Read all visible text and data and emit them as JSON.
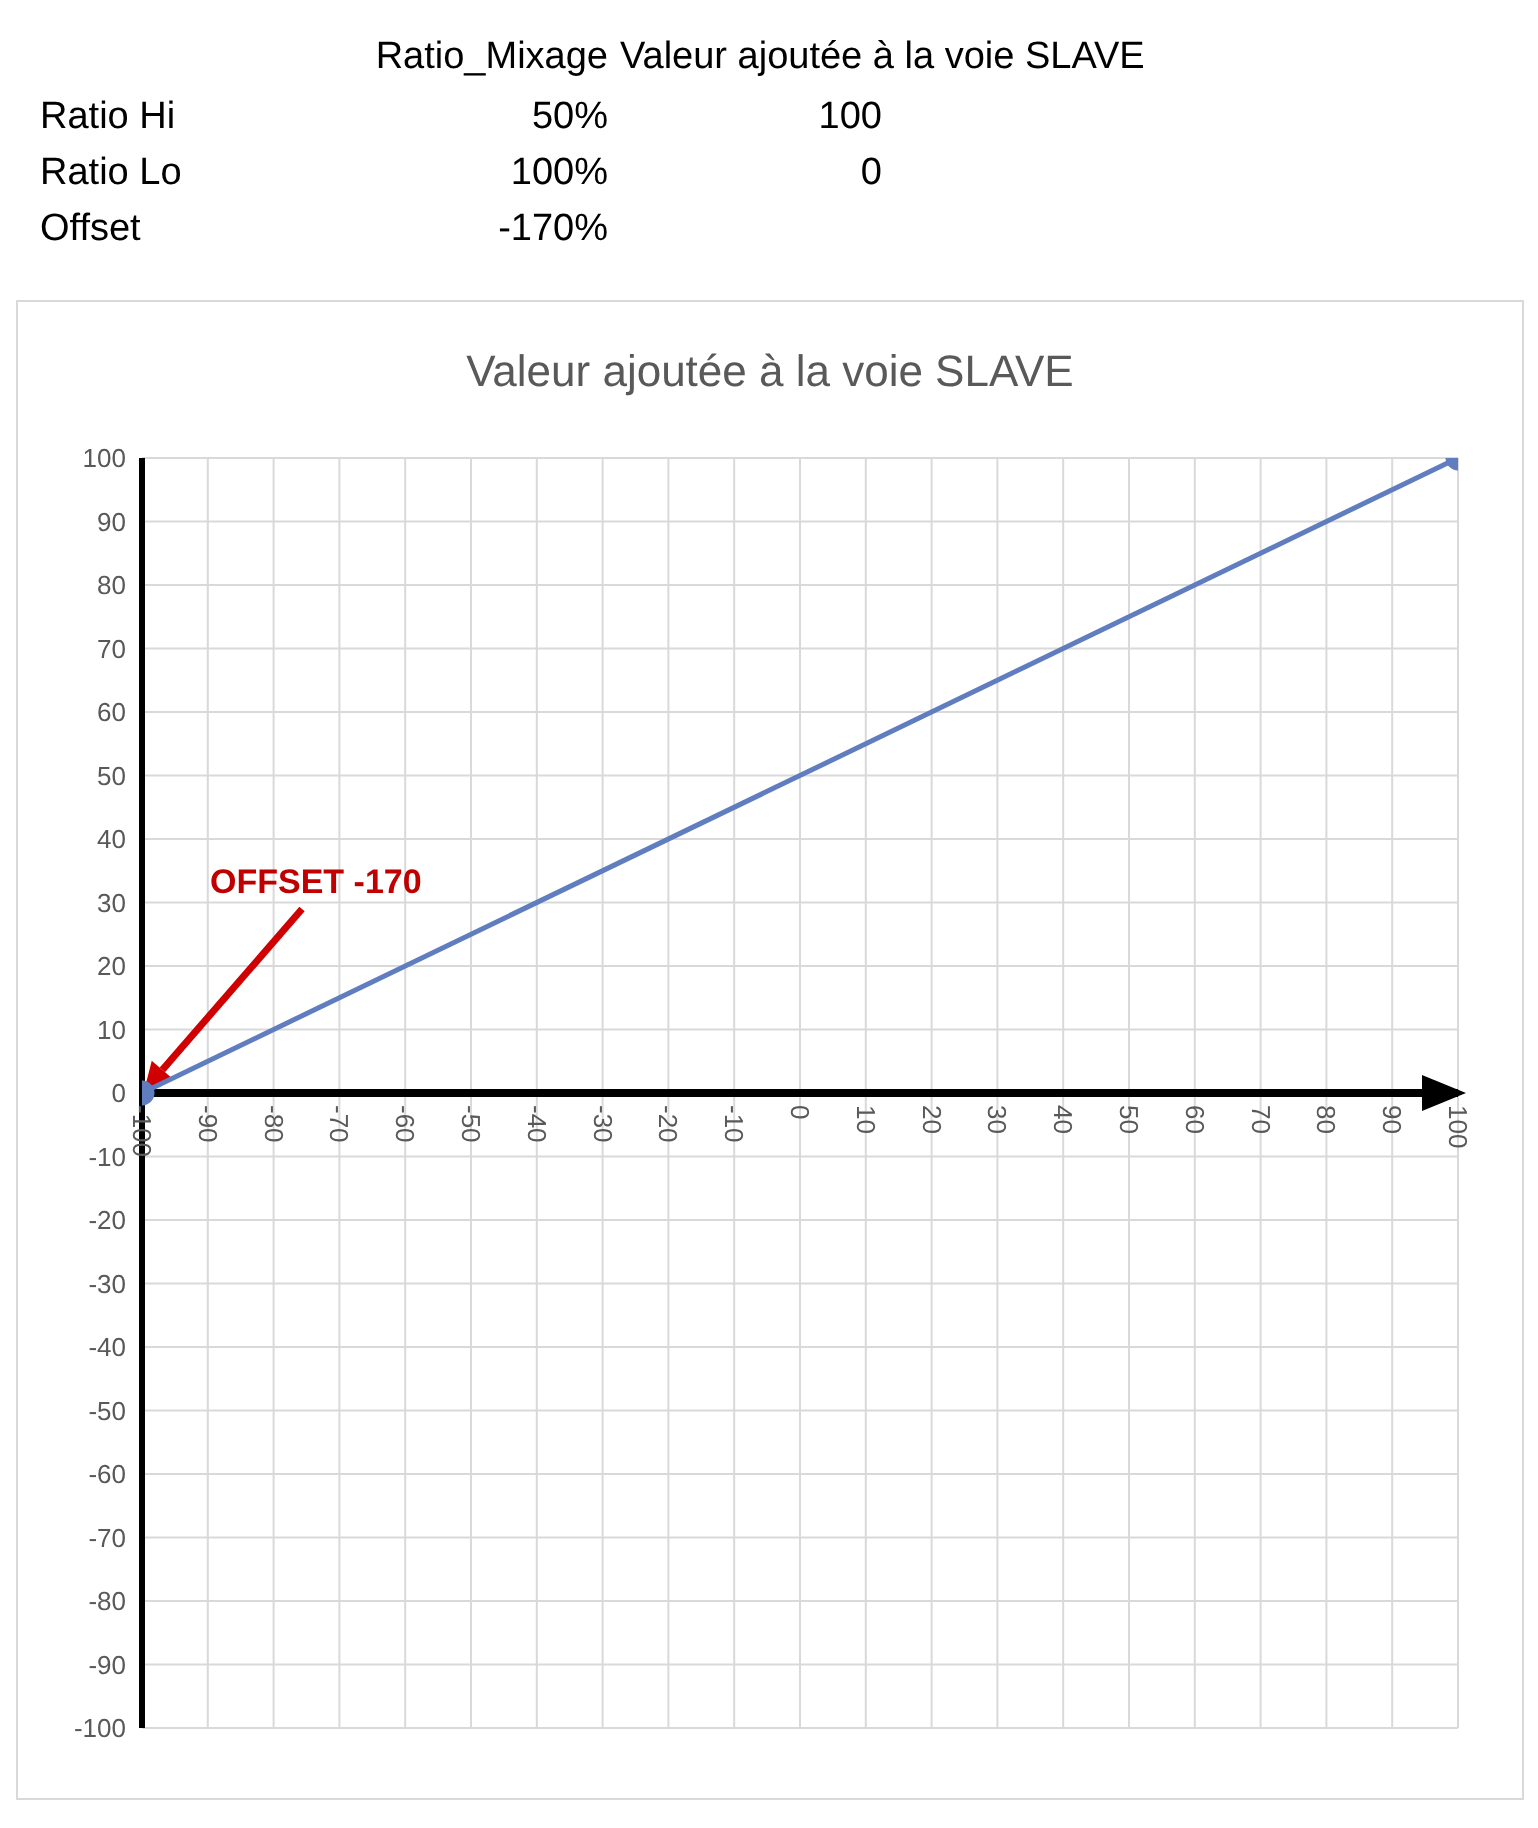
{
  "chart_data": {
    "type": "line",
    "title": "Valeur ajoutée à la voie SLAVE",
    "x": [
      -100,
      100
    ],
    "series": [
      {
        "color": "#5f7dbf",
        "values": [
          0,
          100
        ]
      }
    ],
    "xlim": [
      -100,
      100
    ],
    "xticks": [
      -100,
      -90,
      -80,
      -70,
      -60,
      -50,
      -40,
      -30,
      -20,
      -10,
      0,
      10,
      20,
      30,
      40,
      50,
      60,
      70,
      80,
      90,
      100
    ],
    "ylim": [
      -100,
      100
    ],
    "yticks": [
      -100,
      -90,
      -80,
      -70,
      -60,
      -50,
      -40,
      -30,
      -20,
      -10,
      0,
      10,
      20,
      30,
      40,
      50,
      60,
      70,
      80,
      90,
      100
    ],
    "grid": true,
    "marker": "circle",
    "line_style": "solid",
    "annotations": [
      "Ratio_Mixage",
      "Valeur ajoutée à la voie SLAVE",
      "Ratio Hi",
      "50%",
      "100",
      "Ratio Lo",
      "100%",
      "0",
      "Offset",
      "-170%",
      "OFFSET -170"
    ]
  }
}
